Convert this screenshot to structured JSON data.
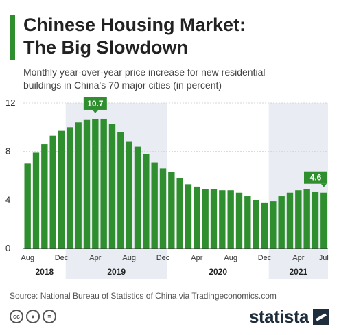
{
  "header": {
    "title_line1": "Chinese Housing Market:",
    "title_line2": "The Big Slowdown",
    "subtitle_line1": "Monthly year-over-year price increase for new residential",
    "subtitle_line2": "buildings in China's 70 major cities (in percent)"
  },
  "colors": {
    "bar": "#2f8f2f",
    "accent": "#2f8f2f",
    "shade": "#e9edf3",
    "brand": "#1f2e3d"
  },
  "chart_data": {
    "type": "bar",
    "categories": [
      "2018-08",
      "2018-09",
      "2018-10",
      "2018-11",
      "2018-12",
      "2019-01",
      "2019-02",
      "2019-03",
      "2019-04",
      "2019-05",
      "2019-06",
      "2019-07",
      "2019-08",
      "2019-09",
      "2019-10",
      "2019-11",
      "2019-12",
      "2020-01",
      "2020-02",
      "2020-03",
      "2020-04",
      "2020-05",
      "2020-06",
      "2020-07",
      "2020-08",
      "2020-09",
      "2020-10",
      "2020-11",
      "2020-12",
      "2021-01",
      "2021-02",
      "2021-03",
      "2021-04",
      "2021-05",
      "2021-06",
      "2021-07"
    ],
    "values": [
      7.0,
      7.9,
      8.6,
      9.3,
      9.7,
      10.0,
      10.4,
      10.6,
      10.7,
      10.7,
      10.3,
      9.6,
      8.8,
      8.4,
      7.8,
      7.1,
      6.6,
      6.3,
      5.8,
      5.3,
      5.1,
      4.9,
      4.9,
      4.8,
      4.8,
      4.6,
      4.3,
      4.0,
      3.8,
      3.9,
      4.3,
      4.6,
      4.8,
      4.9,
      4.7,
      4.6
    ],
    "ylim": [
      0,
      12
    ],
    "yticks": [
      0,
      4,
      8,
      12
    ],
    "xtick_labels": [
      {
        "index": 0,
        "label": "Aug"
      },
      {
        "index": 4,
        "label": "Dec"
      },
      {
        "index": 8,
        "label": "Apr"
      },
      {
        "index": 12,
        "label": "Aug"
      },
      {
        "index": 16,
        "label": "Dec"
      },
      {
        "index": 20,
        "label": "Apr"
      },
      {
        "index": 24,
        "label": "Aug"
      },
      {
        "index": 28,
        "label": "Dec"
      },
      {
        "index": 32,
        "label": "Apr"
      },
      {
        "index": 35,
        "label": "Jul"
      }
    ],
    "years": [
      {
        "label": "2018",
        "start": 0,
        "end": 4,
        "shaded": false
      },
      {
        "label": "2019",
        "start": 5,
        "end": 16,
        "shaded": true
      },
      {
        "label": "2020",
        "start": 17,
        "end": 28,
        "shaded": false
      },
      {
        "label": "2021",
        "start": 29,
        "end": 35,
        "shaded": true
      }
    ],
    "callouts": [
      {
        "index": 8,
        "label": "10.7"
      },
      {
        "index": 35,
        "label": "4.6"
      }
    ],
    "grid": true
  },
  "footer": {
    "source": "Source: National Bureau of Statistics of China via Tradingeconomics.com",
    "brand": "statista",
    "cc_icons": [
      "cc-icon",
      "person-icon",
      "equals-icon"
    ]
  }
}
